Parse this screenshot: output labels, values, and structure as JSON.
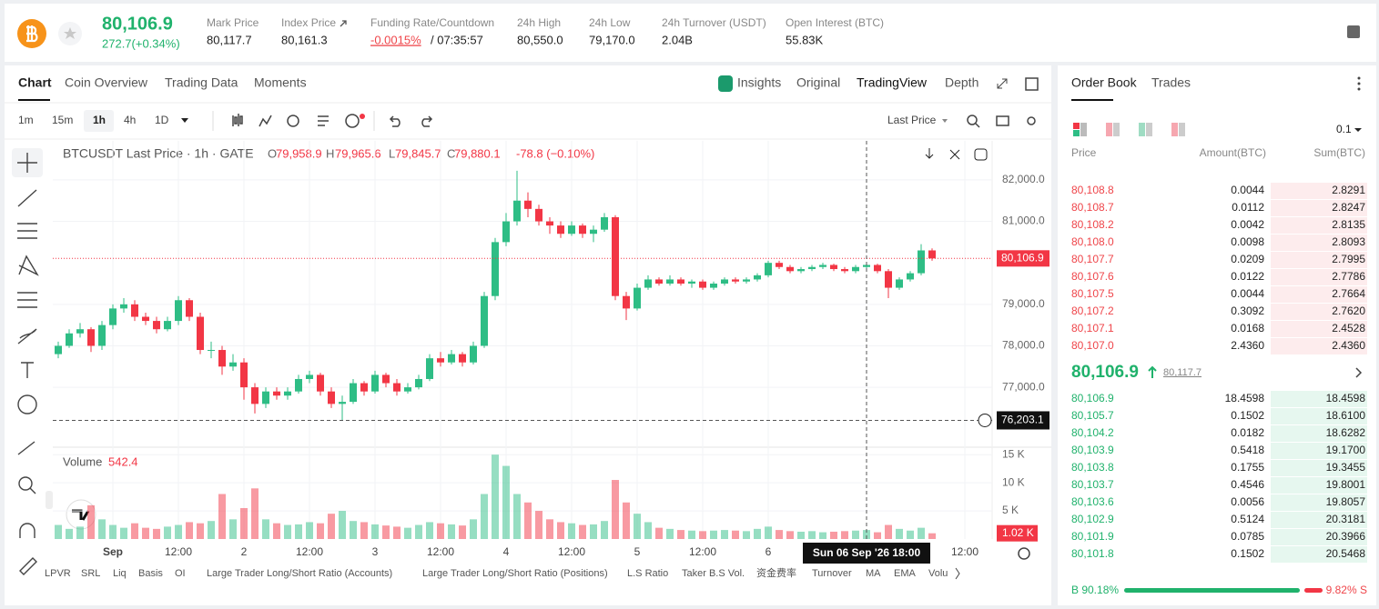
{
  "header": {
    "price": "80,106.9",
    "change": "272.7(+0.34%)",
    "stats": [
      {
        "label": "Mark Price",
        "value": "80,117.7"
      },
      {
        "label": "Index Price",
        "value": "80,161.3"
      },
      {
        "label": "Funding Rate/Countdown",
        "value": "-0.0015%",
        "countdown": "/ 07:35:57"
      },
      {
        "label": "24h High",
        "value": "80,550.0"
      },
      {
        "label": "24h Low",
        "value": "79,170.0"
      },
      {
        "label": "24h Turnover (USDT)",
        "value": "2.04B"
      },
      {
        "label": "Open Interest (BTC)",
        "value": "55.83K"
      }
    ]
  },
  "chart_tabs": [
    "Chart",
    "Coin Overview",
    "Trading Data",
    "Moments"
  ],
  "view_tabs": [
    "Insights",
    "Original",
    "TradingView",
    "Depth"
  ],
  "intervals": [
    "1m",
    "15m",
    "1h",
    "4h",
    "1D"
  ],
  "price_type": "Last Price",
  "legend": {
    "symbol": "BTCUSDT Last Price · 1h · GATE",
    "ohlc": [
      {
        "k": "O",
        "v": "79,958.9"
      },
      {
        "k": "H",
        "v": "79,965.6"
      },
      {
        "k": "L",
        "v": "79,845.7"
      },
      {
        "k": "C",
        "v": "79,880.1"
      }
    ],
    "change": "-78.8 (−0.10%)"
  },
  "chart_data": {
    "type": "candlestick",
    "up_color": "#2ebd85",
    "down_color": "#f23645",
    "categories": [
      null,
      null,
      null,
      null,
      null,
      "Sep",
      null,
      null,
      null,
      null,
      null,
      "12:00",
      null,
      null,
      null,
      null,
      null,
      "2",
      null,
      null,
      null,
      null,
      null,
      "12:00",
      null,
      null,
      null,
      null,
      null,
      "3",
      null,
      null,
      null,
      null,
      null,
      "12:00",
      null,
      null,
      null,
      null,
      null,
      "4",
      null,
      null,
      null,
      null,
      null,
      "12:00",
      null,
      null,
      null,
      null,
      null,
      "5",
      null,
      null,
      null,
      null,
      null,
      "12:00",
      null,
      null,
      null,
      null,
      null,
      "6",
      null,
      null,
      null,
      null,
      null,
      null,
      null,
      null,
      null,
      null,
      null,
      null,
      null,
      null,
      null,
      null,
      null,
      "12:00"
    ],
    "ohlc": [
      [
        77800,
        78100,
        77700,
        78000
      ],
      [
        78000,
        78400,
        77950,
        78300
      ],
      [
        78300,
        78550,
        78200,
        78400
      ],
      [
        78400,
        78450,
        77850,
        78000
      ],
      [
        78000,
        78600,
        77900,
        78500
      ],
      [
        78500,
        79000,
        78400,
        78900
      ],
      [
        78900,
        79150,
        78800,
        79000
      ],
      [
        79000,
        79100,
        78600,
        78700
      ],
      [
        78700,
        78800,
        78500,
        78600
      ],
      [
        78600,
        78700,
        78300,
        78400
      ],
      [
        78400,
        78700,
        78350,
        78600
      ],
      [
        78600,
        79200,
        78500,
        79100
      ],
      [
        79100,
        79150,
        78600,
        78700
      ],
      [
        78700,
        78800,
        77800,
        77900
      ],
      [
        77900,
        78100,
        77700,
        77900
      ],
      [
        77900,
        78000,
        77300,
        77500
      ],
      [
        77500,
        77800,
        77400,
        77600
      ],
      [
        77600,
        77700,
        76700,
        77000
      ],
      [
        77000,
        77100,
        76370,
        76600
      ],
      [
        76600,
        77000,
        76500,
        76900
      ],
      [
        76900,
        77000,
        76700,
        76800
      ],
      [
        76800,
        77000,
        76700,
        76900
      ],
      [
        76900,
        77300,
        76850,
        77200
      ],
      [
        77200,
        77400,
        77100,
        77300
      ],
      [
        77300,
        77350,
        76800,
        76900
      ],
      [
        76900,
        77000,
        76500,
        76600
      ],
      [
        76600,
        76800,
        76190,
        76650
      ],
      [
        76650,
        77200,
        76600,
        77100
      ],
      [
        77100,
        77150,
        76800,
        76900
      ],
      [
        76900,
        77400,
        76850,
        77300
      ],
      [
        77300,
        77350,
        77000,
        77100
      ],
      [
        77100,
        77200,
        76800,
        76900
      ],
      [
        76900,
        77100,
        76850,
        77000
      ],
      [
        77000,
        77300,
        76950,
        77200
      ],
      [
        77200,
        77800,
        77150,
        77700
      ],
      [
        77700,
        77850,
        77500,
        77600
      ],
      [
        77600,
        77900,
        77550,
        77800
      ],
      [
        77800,
        77850,
        77500,
        77600
      ],
      [
        77600,
        78100,
        77550,
        78000
      ],
      [
        78000,
        79300,
        77950,
        79200
      ],
      [
        79200,
        80600,
        79100,
        80500
      ],
      [
        80500,
        81200,
        80400,
        81000
      ],
      [
        81000,
        82220,
        80900,
        81500
      ],
      [
        81500,
        81700,
        81100,
        81300
      ],
      [
        81300,
        81400,
        80900,
        81000
      ],
      [
        81000,
        81100,
        80700,
        80900
      ],
      [
        80900,
        81000,
        80600,
        80700
      ],
      [
        80700,
        81000,
        80650,
        80900
      ],
      [
        80900,
        80950,
        80600,
        80700
      ],
      [
        80700,
        80900,
        80500,
        80800
      ],
      [
        80800,
        81200,
        80750,
        81100
      ],
      [
        81100,
        81150,
        79100,
        79200
      ],
      [
        79200,
        79300,
        78620,
        78900
      ],
      [
        78900,
        79500,
        78850,
        79400
      ],
      [
        79400,
        79700,
        79350,
        79600
      ],
      [
        79600,
        79650,
        79450,
        79500
      ],
      [
        79500,
        79700,
        79450,
        79600
      ],
      [
        79600,
        79650,
        79450,
        79500
      ],
      [
        79500,
        79600,
        79400,
        79550
      ],
      [
        79550,
        79600,
        79350,
        79400
      ],
      [
        79400,
        79550,
        79350,
        79500
      ],
      [
        79500,
        79650,
        79450,
        79600
      ],
      [
        79600,
        79650,
        79500,
        79550
      ],
      [
        79550,
        79650,
        79500,
        79600
      ],
      [
        79600,
        79750,
        79550,
        79700
      ],
      [
        79700,
        80050,
        79650,
        80000
      ],
      [
        80000,
        80050,
        79850,
        79900
      ],
      [
        79900,
        79950,
        79750,
        79800
      ],
      [
        79800,
        79900,
        79750,
        79850
      ],
      [
        79850,
        79950,
        79800,
        79900
      ],
      [
        79900,
        80000,
        79850,
        79950
      ],
      [
        79950,
        79980,
        79800,
        79850
      ],
      [
        79850,
        79900,
        79750,
        79800
      ],
      [
        79800,
        79950,
        79750,
        79900
      ],
      [
        79900,
        80000,
        79850,
        79950
      ],
      [
        79950,
        79980,
        79750,
        79800
      ],
      [
        79800,
        79850,
        79150,
        79400
      ],
      [
        79400,
        79650,
        79350,
        79600
      ],
      [
        79600,
        79800,
        79550,
        79750
      ],
      [
        79750,
        80450,
        79700,
        80300
      ],
      [
        80300,
        80350,
        80050,
        80106.9
      ],
      null,
      null,
      null
    ],
    "volume": [
      2500,
      1800,
      2200,
      6000,
      3500,
      2500,
      2000,
      2800,
      2000,
      1800,
      2200,
      2500,
      3000,
      2800,
      3200,
      8000,
      3500,
      5500,
      9000,
      3500,
      2800,
      2500,
      2600,
      3000,
      2800,
      4500,
      5000,
      3200,
      3000,
      2600,
      2400,
      2200,
      2000,
      2500,
      3000,
      2800,
      2600,
      2400,
      3500,
      8000,
      15000,
      13000,
      8000,
      6500,
      5000,
      3500,
      3000,
      2800,
      2500,
      2600,
      3200,
      10500,
      6500,
      4500,
      3000,
      2000,
      1800,
      1600,
      1500,
      1400,
      1500,
      1600,
      1500,
      1400,
      1800,
      2200,
      1600,
      1400,
      1300,
      1400,
      1200,
      1300,
      1400,
      1500,
      1600,
      1200,
      2500,
      1800,
      1500,
      2000,
      1020,
      null,
      null,
      null
    ],
    "ylim": [
      75600,
      82940
    ],
    "yticks": [
      {
        "value": 77000,
        "label": "77,000.0"
      },
      {
        "value": 78000,
        "label": "78,000.0"
      },
      {
        "value": 79000,
        "label": "79,000.0"
      },
      {
        "value": 81000,
        "label": "81,000.0"
      },
      {
        "value": 82000,
        "label": "82,000.0"
      }
    ],
    "volume_ylim": [
      0,
      16000
    ],
    "volume_yticks": [
      {
        "value": 5000,
        "label": "5 K"
      },
      {
        "value": 10000,
        "label": "10 K"
      },
      {
        "value": 15000,
        "label": "15 K"
      }
    ],
    "last_price": {
      "value": 80106.9,
      "label": "80,106.9"
    },
    "last_volume": {
      "value": 1020,
      "label": "1.02 K"
    },
    "crosshair": {
      "price": {
        "value": 76203.1,
        "label": "76,203.1"
      },
      "time": "Sun 06 Sep '26 18:00",
      "index": 74
    },
    "volume_title": "Volume",
    "volume_value": "542.4"
  },
  "order_book": {
    "tabs": [
      "Order Book",
      "Trades"
    ],
    "step": "0.1",
    "columns": [
      "Price",
      "Amount(BTC)",
      "Sum(BTC)"
    ],
    "asks": [
      [
        "80,108.8",
        "0.0044",
        "2.8291"
      ],
      [
        "80,108.7",
        "0.0112",
        "2.8247"
      ],
      [
        "80,108.2",
        "0.0042",
        "2.8135"
      ],
      [
        "80,108.0",
        "0.0098",
        "2.8093"
      ],
      [
        "80,107.7",
        "0.0209",
        "2.7995"
      ],
      [
        "80,107.6",
        "0.0122",
        "2.7786"
      ],
      [
        "80,107.5",
        "0.0044",
        "2.7664"
      ],
      [
        "80,107.2",
        "0.3092",
        "2.7620"
      ],
      [
        "80,107.1",
        "0.0168",
        "2.4528"
      ],
      [
        "80,107.0",
        "2.4360",
        "2.4360"
      ]
    ],
    "mid_price": "80,106.9",
    "mark_price": "80,117.7",
    "bids": [
      [
        "80,106.9",
        "18.4598",
        "18.4598"
      ],
      [
        "80,105.7",
        "0.1502",
        "18.6100"
      ],
      [
        "80,104.2",
        "0.0182",
        "18.6282"
      ],
      [
        "80,103.9",
        "0.5418",
        "19.1700"
      ],
      [
        "80,103.8",
        "0.1755",
        "19.3455"
      ],
      [
        "80,103.7",
        "0.4546",
        "19.8001"
      ],
      [
        "80,103.6",
        "0.0056",
        "19.8057"
      ],
      [
        "80,102.9",
        "0.5124",
        "20.3181"
      ],
      [
        "80,101.9",
        "0.0785",
        "20.3966"
      ],
      [
        "80,101.8",
        "0.1502",
        "20.5468"
      ]
    ],
    "buy": "B 90.18%",
    "sell": "9.82% S"
  },
  "indicators": [
    "LPVR",
    "SRL",
    "Liq",
    "Basis",
    "OI",
    "Large Trader Long/Short Ratio (Accounts)",
    "Large Trader Long/Short Ratio (Positions)",
    "L.S Ratio",
    "Taker B.S Vol.",
    "资金费率",
    "Turnover",
    "MA",
    "EMA",
    "Volu"
  ]
}
